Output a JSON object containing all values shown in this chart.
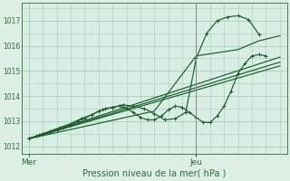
{
  "bg_color": "#ddeee5",
  "plot_bg_color": "#d8ede4",
  "grid_color": "#a8ccb8",
  "line_color": "#1a5c2a",
  "tick_label_color": "#2a6e3a",
  "title": "Pression niveau de la mer( hPa )",
  "yticks": [
    1012,
    1013,
    1014,
    1015,
    1016,
    1017
  ],
  "ylim": [
    1011.7,
    1017.7
  ],
  "xlim": [
    -2,
    74
  ],
  "xmer": 0,
  "xjeu": 48,
  "line1_x": [
    0,
    2,
    4,
    6,
    8,
    10,
    12,
    14,
    16,
    18,
    20,
    22,
    24,
    26,
    28,
    30,
    32,
    34,
    36,
    38,
    40,
    42,
    44,
    46,
    48,
    50,
    52,
    54,
    56,
    58,
    60,
    62,
    64,
    66,
    68
  ],
  "line1_y": [
    1012.3,
    1012.4,
    1012.5,
    1012.55,
    1012.65,
    1012.75,
    1012.85,
    1013.0,
    1013.1,
    1013.25,
    1013.4,
    1013.5,
    1013.55,
    1013.6,
    1013.5,
    1013.35,
    1013.15,
    1013.05,
    1013.05,
    1013.2,
    1013.45,
    1013.6,
    1013.55,
    1013.35,
    1013.15,
    1012.95,
    1012.95,
    1013.2,
    1013.6,
    1014.2,
    1014.9,
    1015.3,
    1015.6,
    1015.65,
    1015.6
  ],
  "line2_x": [
    0,
    3,
    6,
    9,
    12,
    15,
    18,
    21,
    24,
    27,
    30,
    33,
    36,
    39,
    42,
    45,
    48,
    51,
    54,
    57,
    60,
    63,
    66
  ],
  "line2_y": [
    1012.3,
    1012.45,
    1012.6,
    1012.75,
    1012.9,
    1013.1,
    1013.25,
    1013.45,
    1013.55,
    1013.65,
    1013.6,
    1013.5,
    1013.3,
    1013.05,
    1013.1,
    1013.35,
    1015.5,
    1016.5,
    1017.0,
    1017.15,
    1017.2,
    1017.05,
    1016.45
  ],
  "line3_x": [
    0,
    72
  ],
  "line3_y": [
    1012.3,
    1015.2
  ],
  "line4_x": [
    0,
    72
  ],
  "line4_y": [
    1012.3,
    1015.35
  ],
  "line5_x": [
    0,
    72
  ],
  "line5_y": [
    1012.3,
    1015.55
  ],
  "line6_x": [
    0,
    36,
    48,
    60,
    66,
    72
  ],
  "line6_y": [
    1012.3,
    1013.4,
    1015.6,
    1015.85,
    1016.2,
    1016.4
  ],
  "vline_x": 48,
  "vline_color": "#888888"
}
